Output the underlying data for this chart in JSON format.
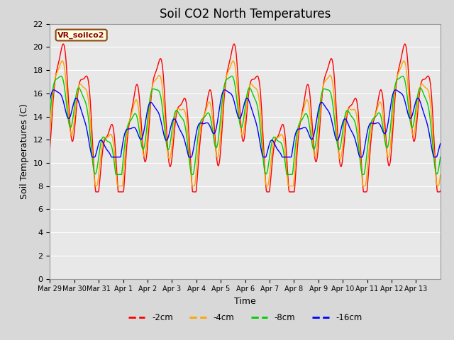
{
  "title": "Soil CO2 North Temperatures",
  "ylabel": "Soil Temperatures (C)",
  "xlabel": "Time",
  "annotation": "VR_soilco2",
  "ylim": [
    0,
    22
  ],
  "yticks": [
    0,
    2,
    4,
    6,
    8,
    10,
    12,
    14,
    16,
    18,
    20,
    22
  ],
  "fig_bg_color": "#d8d8d8",
  "plot_bg_color": "#e8e8e8",
  "line_colors": {
    "-2cm": "#ff0000",
    "-4cm": "#ffa500",
    "-8cm": "#00cc00",
    "-16cm": "#0000ff"
  },
  "legend_labels": [
    "-2cm",
    "-4cm",
    "-8cm",
    "-16cm"
  ],
  "xtick_labels": [
    "Mar 29",
    "Mar 30",
    "Mar 31",
    "Apr 1",
    "Apr 2",
    "Apr 3",
    "Apr 4",
    "Apr 5",
    "Apr 6",
    "Apr 7",
    "Apr 8",
    "Apr 9",
    "Apr 10",
    "Apr 11",
    "Apr 12",
    "Apr 13"
  ],
  "num_days": 16,
  "title_fontsize": 12,
  "axis_fontsize": 9,
  "tick_fontsize": 8
}
